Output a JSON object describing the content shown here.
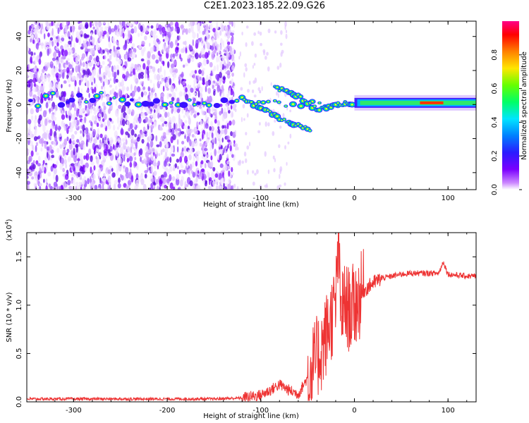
{
  "title": "C2E1.2023.185.22.09.G26",
  "chart_data": [
    {
      "type": "heatmap",
      "name": "spectrogram",
      "xlabel": "Height of straight line (km)",
      "ylabel": "Frequency (Hz)",
      "xlim": [
        -350,
        130
      ],
      "ylim": [
        -50,
        49
      ],
      "xticks": [
        -300,
        -200,
        -100,
        0,
        100
      ],
      "yticks": [
        -40,
        -20,
        0,
        20,
        40
      ],
      "colorbar": {
        "label": "Normalized spectral amplitude",
        "range": [
          0,
          1
        ],
        "ticks": [
          "0.0",
          "0.2",
          "0.4",
          "0.6",
          "0.8"
        ],
        "colormap": [
          "#ffffff",
          "#cc88ff",
          "#7b00ff",
          "#2a1bff",
          "#0080ff",
          "#00e5ff",
          "#00ff66",
          "#66ff00",
          "#ffe600",
          "#ff8000",
          "#ff0000",
          "#ff0088"
        ]
      },
      "features": [
        {
          "name": "noise-floor",
          "x_range": [
            -350,
            -128
          ],
          "freq_range": [
            -50,
            49
          ]
        },
        {
          "name": "carrier-line",
          "x_range": [
            -350,
            130
          ],
          "freq": 1
        },
        {
          "name": "upper-branch",
          "points": [
            [
              -85,
              10
            ],
            [
              -60,
              5
            ],
            [
              -40,
              -3
            ],
            [
              -20,
              0
            ],
            [
              0,
              1
            ]
          ]
        },
        {
          "name": "lower-branch",
          "points": [
            [
              -120,
              4
            ],
            [
              -100,
              -2
            ],
            [
              -80,
              -8
            ],
            [
              -60,
              -12
            ],
            [
              -45,
              -15
            ]
          ]
        }
      ]
    },
    {
      "type": "line",
      "name": "snr",
      "xlabel": "Height of straight line (km)",
      "ylabel": "SNR (10 * v/v)",
      "scale_label": "(x10",
      "scale_exp": "4",
      "scale_close": ")",
      "xlim": [
        -350,
        130
      ],
      "ylim": [
        0,
        1.75
      ],
      "xticks": [
        -300,
        -200,
        -100,
        0,
        100
      ],
      "yticks": [
        "0.0",
        "0.5",
        "1.0",
        "1.5"
      ],
      "series": [
        {
          "name": "SNR",
          "color": "#ee3333",
          "x": [
            -350,
            -300,
            -250,
            -200,
            -150,
            -120,
            -100,
            -90,
            -80,
            -70,
            -60,
            -50,
            -40,
            -35,
            -30,
            -25,
            -20,
            -17,
            -15,
            -10,
            -5,
            0,
            10,
            20,
            30,
            40,
            50,
            60,
            70,
            80,
            90,
            95,
            100,
            110,
            120,
            130
          ],
          "y": [
            0.03,
            0.03,
            0.03,
            0.03,
            0.03,
            0.04,
            0.07,
            0.12,
            0.18,
            0.12,
            0.08,
            0.25,
            0.45,
            0.55,
            0.7,
            0.85,
            1.0,
            1.72,
            0.95,
            1.0,
            0.95,
            1.0,
            1.15,
            1.23,
            1.28,
            1.3,
            1.32,
            1.33,
            1.33,
            1.33,
            1.33,
            1.45,
            1.32,
            1.31,
            1.3,
            1.3
          ]
        }
      ]
    }
  ]
}
